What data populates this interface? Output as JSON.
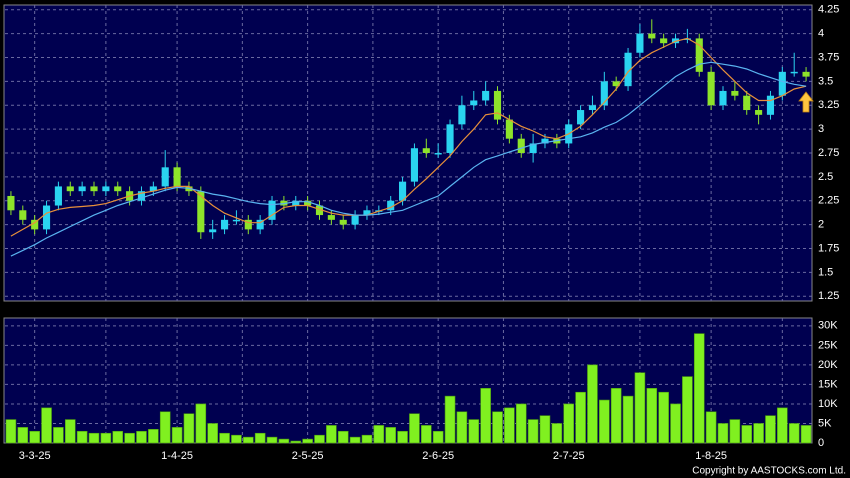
{
  "chart_data": {
    "type": "candlestick",
    "categories": [
      null,
      null,
      "3-3-25",
      null,
      null,
      null,
      null,
      null,
      null,
      null,
      null,
      null,
      null,
      null,
      "1-4-25",
      null,
      null,
      null,
      null,
      null,
      null,
      null,
      null,
      null,
      null,
      "2-5-25",
      null,
      null,
      null,
      null,
      null,
      null,
      null,
      null,
      null,
      null,
      "2-6-25",
      null,
      null,
      null,
      null,
      null,
      null,
      null,
      null,
      null,
      null,
      "2-7-25",
      null,
      null,
      null,
      null,
      null,
      null,
      null,
      null,
      null,
      null,
      null,
      "1-8-25",
      null,
      null,
      null,
      null,
      null,
      null,
      null,
      null
    ],
    "open": [
      2.3,
      2.15,
      2.05,
      1.95,
      2.2,
      2.4,
      2.35,
      2.4,
      2.35,
      2.4,
      2.35,
      2.25,
      2.35,
      2.4,
      2.6,
      2.4,
      2.35,
      1.92,
      1.95,
      2.05,
      2.05,
      1.95,
      2.05,
      2.25,
      2.2,
      2.25,
      2.2,
      2.1,
      2.05,
      2.0,
      2.1,
      2.15,
      2.15,
      2.25,
      2.45,
      2.8,
      2.75,
      2.75,
      3.05,
      3.25,
      3.3,
      3.4,
      3.1,
      2.9,
      2.75,
      2.85,
      2.9,
      2.85,
      3.05,
      3.2,
      3.25,
      3.5,
      3.45,
      3.8,
      4.0,
      3.95,
      3.9,
      3.95,
      3.95,
      3.6,
      3.25,
      3.4,
      3.35,
      3.2,
      3.15,
      3.35,
      3.6,
      3.6
    ],
    "high": [
      2.35,
      2.2,
      2.1,
      2.25,
      2.45,
      2.45,
      2.45,
      2.45,
      2.45,
      2.45,
      2.4,
      2.4,
      2.45,
      2.78,
      2.65,
      2.45,
      2.4,
      2.05,
      2.1,
      2.15,
      2.1,
      2.1,
      2.3,
      2.3,
      2.3,
      2.3,
      2.25,
      2.15,
      2.1,
      2.15,
      2.2,
      2.2,
      2.3,
      2.5,
      2.85,
      2.9,
      2.85,
      3.1,
      3.35,
      3.4,
      3.5,
      3.45,
      3.15,
      2.95,
      2.95,
      2.95,
      2.95,
      3.1,
      3.25,
      3.35,
      3.6,
      3.55,
      3.85,
      4.1,
      4.15,
      4.0,
      4.0,
      4.05,
      4.0,
      3.65,
      3.45,
      3.5,
      3.4,
      3.25,
      3.4,
      3.65,
      3.8,
      3.65
    ],
    "low": [
      2.1,
      2.0,
      1.9,
      1.9,
      2.15,
      2.3,
      2.3,
      2.3,
      2.3,
      2.3,
      2.2,
      2.2,
      2.3,
      2.35,
      2.35,
      2.3,
      1.85,
      1.85,
      1.9,
      2.0,
      1.9,
      1.9,
      2.0,
      2.15,
      2.15,
      2.15,
      2.05,
      2.0,
      1.95,
      1.95,
      2.05,
      2.1,
      2.1,
      2.2,
      2.4,
      2.7,
      2.7,
      2.7,
      3.0,
      3.2,
      3.25,
      3.05,
      2.85,
      2.7,
      2.65,
      2.8,
      2.8,
      2.8,
      3.0,
      3.15,
      3.2,
      3.4,
      3.4,
      3.75,
      3.9,
      3.85,
      3.85,
      3.9,
      3.55,
      3.2,
      3.2,
      3.3,
      3.15,
      3.05,
      3.1,
      3.3,
      3.55,
      3.5
    ],
    "close": [
      2.15,
      2.05,
      1.95,
      2.2,
      2.4,
      2.35,
      2.4,
      2.35,
      2.4,
      2.35,
      2.25,
      2.35,
      2.4,
      2.6,
      2.4,
      2.35,
      1.92,
      1.95,
      2.05,
      2.05,
      1.95,
      2.05,
      2.25,
      2.2,
      2.25,
      2.2,
      2.1,
      2.05,
      2.0,
      2.1,
      2.15,
      2.15,
      2.25,
      2.45,
      2.8,
      2.75,
      2.75,
      3.05,
      3.25,
      3.3,
      3.4,
      3.1,
      2.9,
      2.75,
      2.85,
      2.9,
      2.85,
      3.05,
      3.2,
      3.25,
      3.5,
      3.45,
      3.8,
      4.0,
      3.95,
      3.9,
      3.95,
      3.95,
      3.6,
      3.25,
      3.4,
      3.35,
      3.2,
      3.15,
      3.35,
      3.6,
      3.6,
      3.55
    ],
    "up_color": "#2ad4f0",
    "down_color": "#8ee42a",
    "series": [
      {
        "color": "#e8903a",
        "values": [
          1.88,
          1.95,
          2.02,
          2.12,
          2.16,
          2.18,
          2.19,
          2.2,
          2.22,
          2.26,
          2.3,
          2.33,
          2.35,
          2.38,
          2.4,
          2.4,
          2.3,
          2.2,
          2.12,
          2.07,
          2.02,
          2.02,
          2.1,
          2.18,
          2.2,
          2.2,
          2.16,
          2.12,
          2.1,
          2.1,
          2.1,
          2.14,
          2.18,
          2.25,
          2.37,
          2.48,
          2.6,
          2.72,
          2.87,
          3.0,
          3.15,
          3.17,
          3.1,
          3.03,
          2.98,
          2.92,
          2.9,
          2.95,
          3.03,
          3.15,
          3.28,
          3.42,
          3.6,
          3.72,
          3.8,
          3.86,
          3.92,
          3.95,
          3.88,
          3.75,
          3.62,
          3.5,
          3.38,
          3.3,
          3.3,
          3.35,
          3.42,
          3.45
        ]
      },
      {
        "color": "#5ab4f0",
        "values": [
          1.67,
          1.73,
          1.79,
          1.86,
          1.92,
          1.98,
          2.04,
          2.1,
          2.15,
          2.2,
          2.24,
          2.28,
          2.32,
          2.36,
          2.39,
          2.38,
          2.35,
          2.32,
          2.3,
          2.27,
          2.24,
          2.22,
          2.21,
          2.22,
          2.24,
          2.24,
          2.2,
          2.15,
          2.12,
          2.1,
          2.1,
          2.11,
          2.13,
          2.15,
          2.2,
          2.25,
          2.3,
          2.4,
          2.5,
          2.6,
          2.68,
          2.72,
          2.76,
          2.8,
          2.84,
          2.86,
          2.88,
          2.9,
          2.92,
          2.96,
          3.02,
          3.07,
          3.15,
          3.25,
          3.35,
          3.45,
          3.55,
          3.62,
          3.68,
          3.7,
          3.68,
          3.66,
          3.63,
          3.58,
          3.54,
          3.5,
          3.47,
          3.45
        ]
      }
    ],
    "ylim": [
      1.2,
      4.3
    ],
    "yticks": [
      1.25,
      1.5,
      1.75,
      2,
      2.25,
      2.5,
      2.75,
      3,
      3.25,
      3.5,
      3.75,
      4,
      4.25
    ],
    "grid": true,
    "volume": {
      "color": "#80f020",
      "values": [
        6000,
        4000,
        3000,
        9000,
        4000,
        6000,
        3000,
        2500,
        2500,
        3000,
        2500,
        3000,
        3500,
        8000,
        4000,
        7500,
        10000,
        5000,
        2500,
        2000,
        1500,
        2500,
        1500,
        1000,
        500,
        1000,
        2000,
        4500,
        3000,
        1500,
        2000,
        4500,
        4000,
        3000,
        7500,
        4500,
        3000,
        12000,
        8000,
        6000,
        14000,
        8000,
        9000,
        10000,
        6000,
        7000,
        5000,
        10000,
        13000,
        20000,
        11000,
        14000,
        12000,
        18000,
        14000,
        13000,
        10000,
        17000,
        28000,
        8000,
        5000,
        6000,
        4500,
        5000,
        7000,
        9000,
        5000,
        4500
      ],
      "ylim": [
        0,
        32000
      ],
      "yticks": [
        0,
        {
          "value": 5000,
          "label": "5K"
        },
        {
          "value": 10000,
          "label": "10K"
        },
        {
          "value": 15000,
          "label": "15K"
        },
        {
          "value": 20000,
          "label": "20K"
        },
        {
          "value": 25000,
          "label": "25K"
        },
        {
          "value": 30000,
          "label": "30K"
        }
      ]
    },
    "copyright": "Copyright by AASTOCKS.com Ltd."
  }
}
